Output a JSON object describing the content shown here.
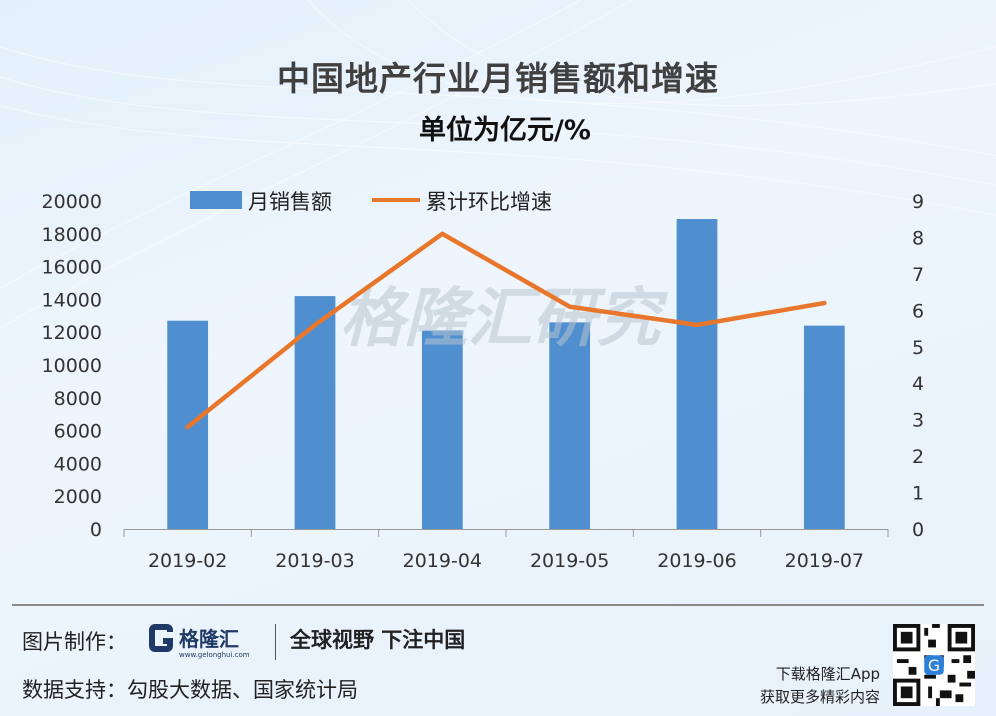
{
  "chart_data": {
    "type": "bar",
    "title": "中国地产行业月销售额和增速",
    "subtitle": "单位为亿元/%",
    "categories": [
      "2019-02",
      "2019-03",
      "2019-04",
      "2019-05",
      "2019-06",
      "2019-07"
    ],
    "series": [
      {
        "name": "月销售额",
        "type": "bar",
        "axis": "left",
        "color": "#4f8fd0",
        "values": [
          12700,
          14200,
          12100,
          12600,
          18900,
          12400
        ]
      },
      {
        "name": "累计环比增速",
        "type": "line",
        "axis": "right",
        "color": "#e9772b",
        "values": [
          2.8,
          5.6,
          8.1,
          6.1,
          5.6,
          6.2
        ]
      }
    ],
    "y_left": {
      "min": 0,
      "max": 20000,
      "ticks": [
        "0",
        "2000",
        "4000",
        "6000",
        "8000",
        "10000",
        "12000",
        "14000",
        "16000",
        "18000",
        "20000"
      ]
    },
    "y_right": {
      "min": 0,
      "max": 9,
      "ticks": [
        "0",
        "1",
        "2",
        "3",
        "4",
        "5",
        "6",
        "7",
        "8",
        "9"
      ]
    },
    "legend": "top",
    "grid": false,
    "watermark": "格隆汇研究"
  },
  "footer": {
    "made_by_label": "图片制作：",
    "brand_name": "格隆汇",
    "brand_url": "www.gelonghui.com",
    "slogan": "全球视野 下注中国",
    "data_source_label": "数据支持：",
    "data_source": "勾股大数据、国家统计局",
    "download_line1": "下载格隆汇App",
    "download_line2": "获取更多精彩内容"
  }
}
